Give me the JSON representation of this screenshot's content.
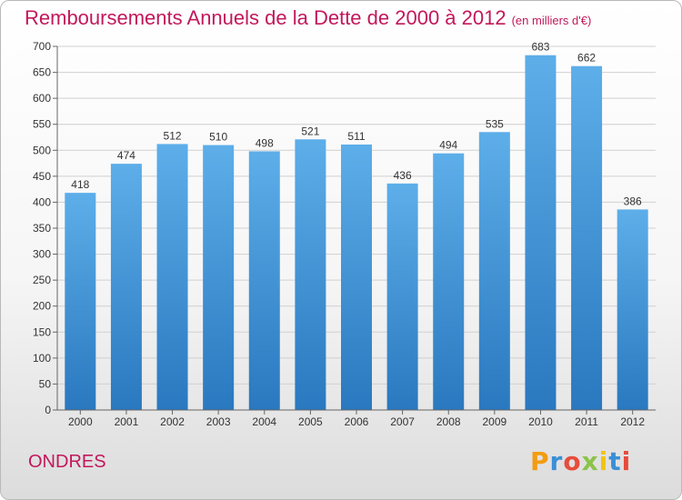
{
  "title": "Remboursements Annuels de la Dette de 2000 à 2012",
  "unit": "(en milliers d'€)",
  "commune": "ONDRES",
  "logo": {
    "text": "Proxiti",
    "letters": [
      {
        "ch": "P",
        "color": "#f39c12"
      },
      {
        "ch": "r",
        "color": "#3b8fd6"
      },
      {
        "ch": "o",
        "color": "#e74c3c"
      },
      {
        "ch": "x",
        "color": "#8bc34a"
      },
      {
        "ch": "i",
        "color": "#f1c40f"
      },
      {
        "ch": "t",
        "color": "#3b8fd6"
      },
      {
        "ch": "i",
        "color": "#e74c3c"
      }
    ]
  },
  "colors": {
    "title": "#c2185b",
    "bar_top": "#5daee9",
    "bar_bottom": "#2a78bf",
    "grid": "#d0d0d0",
    "axis_text": "#333333"
  },
  "chart_data": {
    "type": "bar",
    "title": "Remboursements Annuels de la Dette de 2000 à 2012",
    "xlabel": "",
    "ylabel": "",
    "categories": [
      "2000",
      "2001",
      "2002",
      "2003",
      "2004",
      "2005",
      "2006",
      "2007",
      "2008",
      "2009",
      "2010",
      "2011",
      "2012"
    ],
    "values": [
      418,
      474,
      512,
      510,
      498,
      521,
      511,
      436,
      494,
      535,
      683,
      662,
      386
    ],
    "ylim": [
      0,
      700
    ],
    "yticks": [
      0,
      50,
      100,
      150,
      200,
      250,
      300,
      350,
      400,
      450,
      500,
      550,
      600,
      650,
      700
    ],
    "grid": true,
    "legend": "none"
  }
}
